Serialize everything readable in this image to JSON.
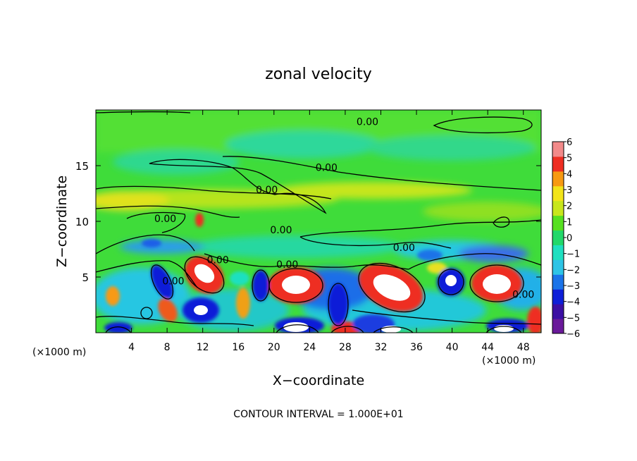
{
  "chart_data": {
    "type": "heatmap",
    "title": "zonal velocity",
    "xlabel": "X−coordinate",
    "ylabel": "Z−coordinate",
    "x_scale_label": "(×1000 m)",
    "z_scale_label": "(×1000 m)",
    "xlim": [
      0,
      50
    ],
    "ylim": [
      0,
      20
    ],
    "x_ticks": [
      4,
      8,
      12,
      16,
      20,
      24,
      28,
      32,
      36,
      40,
      44,
      48
    ],
    "y_ticks": [
      5,
      10,
      15
    ],
    "colorbar": {
      "range": [
        -6,
        6
      ],
      "ticks": [
        6,
        5,
        4,
        3,
        2,
        1,
        0,
        -1,
        -2,
        -3,
        -4,
        -5,
        -6
      ],
      "tick_labels": [
        "6",
        "5",
        "4",
        "3",
        "2",
        "1",
        "0",
        "−1",
        "−2",
        "−3",
        "−4",
        "−5",
        "−6"
      ],
      "colors": [
        "#6a1a9a",
        "#3b0fa3",
        "#0e1fd8",
        "#1a73e8",
        "#2ec4e6",
        "#1fe0c0",
        "#22d86a",
        "#56e020",
        "#c8e61c",
        "#f2e41a",
        "#f79a12",
        "#ee2e22",
        "#f28a8a"
      ]
    },
    "contour_labels": [
      {
        "text": "0.00",
        "x": 30.5,
        "z": 18.7
      },
      {
        "text": "0.00",
        "x": 25.9,
        "z": 14.6
      },
      {
        "text": "0.00",
        "x": 19.2,
        "z": 12.6
      },
      {
        "text": "0.00",
        "x": 7.8,
        "z": 10.0
      },
      {
        "text": "0.00",
        "x": 20.8,
        "z": 9.0
      },
      {
        "text": "0.00",
        "x": 34.6,
        "z": 7.4
      },
      {
        "text": "0.00",
        "x": 13.7,
        "z": 6.3
      },
      {
        "text": "0.00",
        "x": 21.5,
        "z": 5.9
      },
      {
        "text": "0.00",
        "x": 8.7,
        "z": 4.4
      },
      {
        "text": "0.00",
        "x": 48.0,
        "z": 3.2
      }
    ],
    "contour_interval_text": "CONTOUR INTERVAL = 1.000E+01"
  }
}
